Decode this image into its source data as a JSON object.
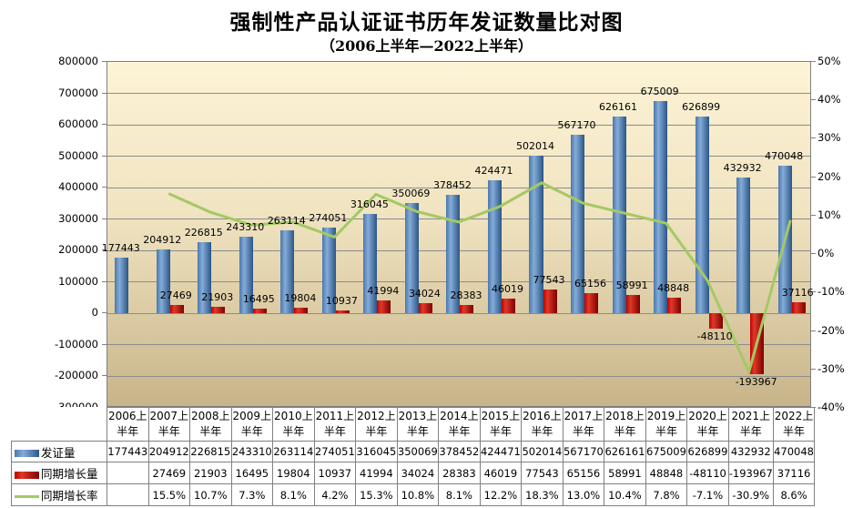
{
  "title": "强制性产品认证证书历年发证数量比对图",
  "subtitle": "（2006上半年—2022上半年）",
  "chart_data": {
    "type": "combo: clustered bar + line, with attached data table",
    "categories": [
      "2006上半年",
      "2007上半年",
      "2008上半年",
      "2009上半年",
      "2010上半年",
      "2011上半年",
      "2012上半年",
      "2013上半年",
      "2014上半年",
      "2015上半年",
      "2016上半年",
      "2017上半年",
      "2018上半年",
      "2019上半年",
      "2020上半年",
      "2021上半年",
      "2022上半年"
    ],
    "series": [
      {
        "name": "发证量",
        "type": "bar",
        "axis": "left",
        "values": [
          177443,
          204912,
          226815,
          243310,
          263114,
          274051,
          316045,
          350069,
          378452,
          424471,
          502014,
          567170,
          626161,
          675009,
          626899,
          432932,
          470048
        ]
      },
      {
        "name": "同期增长量",
        "type": "bar",
        "axis": "left",
        "values": [
          null,
          27469,
          21903,
          16495,
          19804,
          10937,
          41994,
          34024,
          28383,
          46019,
          77543,
          65156,
          58991,
          48848,
          -48110,
          -193967,
          37116
        ]
      },
      {
        "name": "同期增长率",
        "type": "line",
        "axis": "right",
        "values": [
          null,
          15.5,
          10.7,
          7.3,
          8.1,
          4.2,
          15.3,
          10.8,
          8.1,
          12.2,
          18.3,
          13.0,
          10.4,
          7.8,
          -7.1,
          -30.9,
          8.6
        ],
        "display": [
          "",
          "15.5%",
          "10.7%",
          "7.3%",
          "8.1%",
          "4.2%",
          "15.3%",
          "10.8%",
          "8.1%",
          "12.2%",
          "18.3%",
          "13.0%",
          "10.4%",
          "7.8%",
          "-7.1%",
          "-30.9%",
          "8.6%"
        ]
      }
    ],
    "left_axis": {
      "min": -300000,
      "max": 800000,
      "step": 100000,
      "ticks": [
        "800000",
        "700000",
        "600000",
        "500000",
        "400000",
        "300000",
        "200000",
        "100000",
        "0",
        "-100000",
        "-200000",
        "-300000"
      ]
    },
    "right_axis": {
      "min": -40,
      "max": 50,
      "step": 10,
      "ticks": [
        "50%",
        "40%",
        "30%",
        "20%",
        "10%",
        "0%",
        "-10%",
        "-20%",
        "-30%",
        "-40%"
      ]
    },
    "grid": "horizontal only",
    "legend_position": "left column of attached data table",
    "colors": {
      "plot_bg_top": "#FDF3D6",
      "plot_bg_mid": "#F0E3C0",
      "plot_bg_bottom": "#C8B489",
      "gridline": "#8C8C8C",
      "plot_border": "#808080",
      "blue_bar": [
        "#4A77AB",
        "#85ACD8",
        "#2A5687"
      ],
      "red_bar": [
        "#C00000",
        "#DE3A28",
        "#7E0000"
      ],
      "green_line": "#A3C964"
    }
  }
}
